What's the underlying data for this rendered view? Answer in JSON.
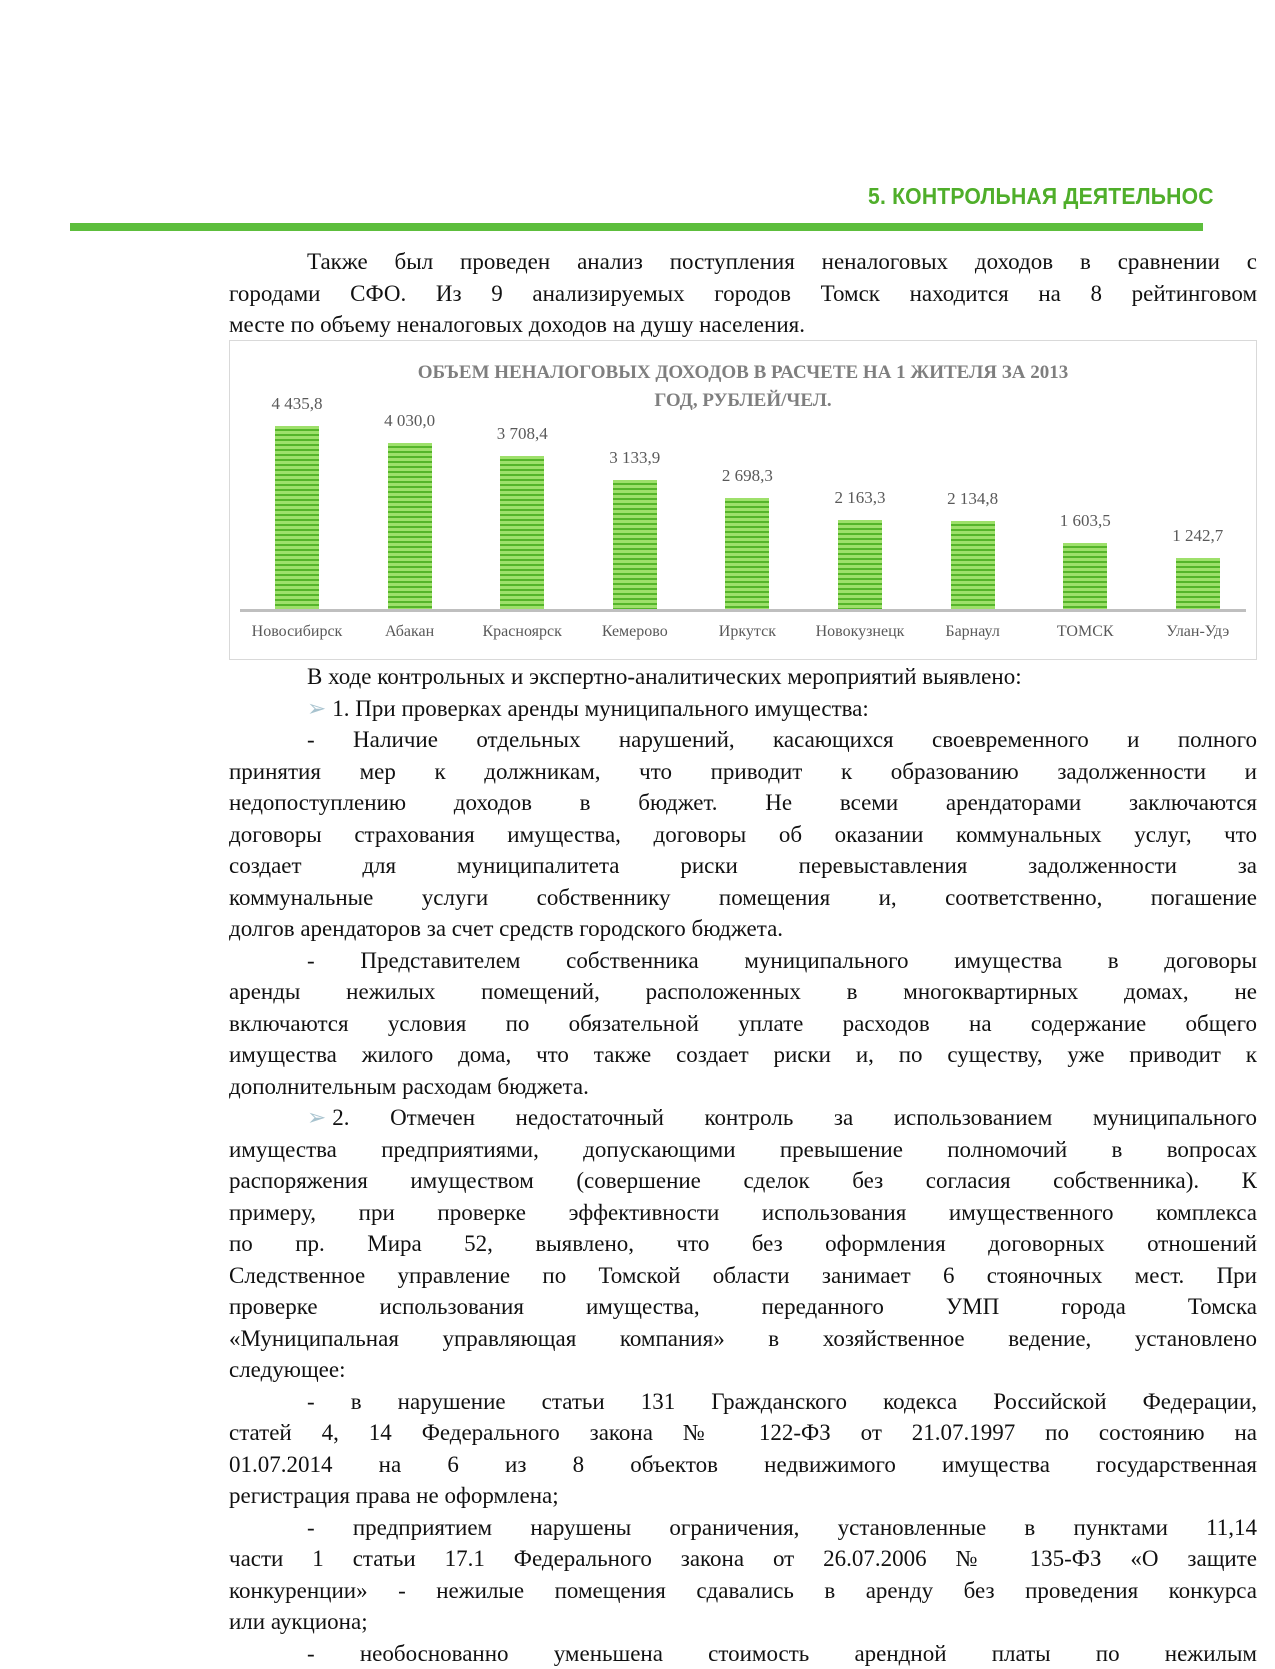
{
  "header": {
    "section_title": "5. КОНТРОЛЬНАЯ ДЕЯТЕЛЬНОС",
    "accent_color": "#5dbe3c"
  },
  "intro_lines": [
    {
      "text": "Также был проведен анализ поступления неналоговых доходов в сравнении с",
      "indent": true
    },
    {
      "text": "городами СФО. Из 9 анализируемых городов Томск находится на 8 рейтинговом"
    },
    {
      "text": "месте по объему неналоговых доходов на душу населения.",
      "last": true
    }
  ],
  "chart_data": {
    "type": "bar",
    "title_lines": [
      "ОБЪЕМ НЕНАЛОГОВЫХ ДОХОДОВ В РАСЧЕТЕ НА 1 ЖИТЕЛЯ ЗА 2013",
      "ГОД, РУБЛЕЙ/ЧЕЛ."
    ],
    "categories": [
      "Новосибирск",
      "Абакан",
      "Красноярск",
      "Кемерово",
      "Иркутск",
      "Новокузнецк",
      "Барнаул",
      "ТОМСК",
      "Улан-Удэ"
    ],
    "values": [
      4435.8,
      4030.0,
      3708.4,
      3133.9,
      2698.3,
      2163.3,
      2134.8,
      1603.5,
      1242.7
    ],
    "data_labels": [
      "4 435,8",
      "4 030,0",
      "3 708,4",
      "3 133,9",
      "2 698,3",
      "2 163,3",
      "2 134,8",
      "1 603,5",
      "1 242,7"
    ],
    "grid": false,
    "bar_color": "#7ccc4a"
  },
  "body_lines": [
    {
      "text": "В ходе контрольных и экспертно-аналитических мероприятий выявлено:",
      "indent": true,
      "last": true
    },
    {
      "text": "1. При проверках аренды муниципального имущества:",
      "indent": true,
      "last": true,
      "bullet": "➢"
    },
    {
      "text": "- Наличие отдельных нарушений, касающихся своевременного и полного",
      "indent": true
    },
    {
      "text": "принятия мер к должникам, что приводит к образованию задолженности и"
    },
    {
      "text": "недопоступлению доходов в бюджет. Не всеми арендаторами заключаются"
    },
    {
      "text": "договоры страхования имущества, договоры об оказании коммунальных услуг, что"
    },
    {
      "text": "создает для муниципалитета риски перевыставления задолженности за"
    },
    {
      "text": "коммунальные услуги собственнику помещения и, соответственно, погашение"
    },
    {
      "text": "долгов арендаторов за счет средств городского бюджета.",
      "last": true
    },
    {
      "text": "- Представителем собственника муниципального имущества в договоры",
      "indent": true
    },
    {
      "text": "аренды нежилых помещений, расположенных в многоквартирных домах, не"
    },
    {
      "text": "включаются условия по обязательной уплате расходов на содержание общего"
    },
    {
      "text": "имущества жилого дома, что также создает риски и, по существу, уже приводит к"
    },
    {
      "text": "дополнительным расходам бюджета.",
      "last": true
    },
    {
      "text": "2. Отмечен недостаточный контроль за использованием муниципального",
      "indent": true,
      "bullet": "➢"
    },
    {
      "text": "имущества предприятиями, допускающими превышение полномочий в вопросах"
    },
    {
      "text": "распоряжения имуществом (совершение сделок без согласия собственника). К"
    },
    {
      "text": "примеру, при проверке эффективности использования имущественного комплекса"
    },
    {
      "text": "по пр. Мира 52, выявлено, что без оформления договорных отношений"
    },
    {
      "text": "Следственное управление по Томской области занимает 6 стояночных мест. При"
    },
    {
      "text": "проверке использования имущества, переданного УМП города Томска"
    },
    {
      "text": "«Муниципальная управляющая компания» в хозяйственное ведение, установлено"
    },
    {
      "text": "следующее:",
      "last": true
    },
    {
      "text": "- в нарушение статьи 131 Гражданского кодекса Российской Федерации,",
      "indent": true
    },
    {
      "text": "статей 4, 14 Федерального закона № 122-ФЗ от 21.07.1997 по состоянию на"
    },
    {
      "text": "01.07.2014 на 6 из 8 объектов недвижимого имущества государственная"
    },
    {
      "text": "регистрация права не оформлена;",
      "last": true
    },
    {
      "text": "- предприятием нарушены ограничения, установленные в пунктами 11,14",
      "indent": true
    },
    {
      "text": "части 1 статьи 17.1 Федерального закона от 26.07.2006 № 135-ФЗ «О защите"
    },
    {
      "text": "конкуренции» - нежилые помещения сдавались в аренду без проведения конкурса"
    },
    {
      "text": "или аукциона;",
      "last": true
    },
    {
      "text": "- необоснованно уменьшена стоимость арендной платы по нежилым",
      "indent": true
    }
  ]
}
